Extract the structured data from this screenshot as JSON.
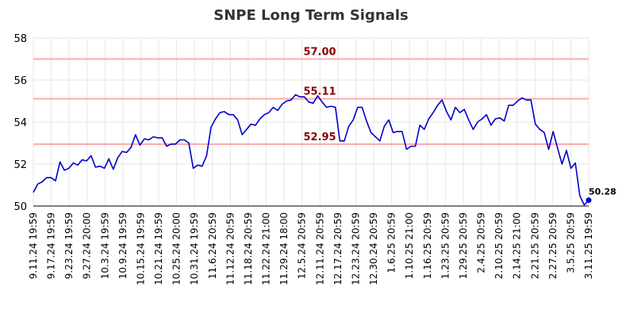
{
  "chart_data": {
    "type": "line",
    "title": "SNPE Long Term Signals",
    "ylim": [
      50,
      58
    ],
    "yticks": [
      50,
      52,
      54,
      56,
      58
    ],
    "grid": true,
    "line_color": "#0000cc",
    "level_color": "#ffaaaa",
    "level_label_color": "#8b0000",
    "levels": [
      {
        "value": 57.0,
        "label": "57.00"
      },
      {
        "value": 55.11,
        "label": "55.11"
      },
      {
        "value": 52.95,
        "label": "52.95"
      }
    ],
    "last_point": {
      "label": "50.28",
      "value": 50.28
    },
    "xtick_labels": [
      "9.11.24 19:59",
      "9.17.24 19:59",
      "9.23.24 19:59",
      "9.27.24 20:00",
      "10.3.24 19:59",
      "10.9.24 19:59",
      "10.15.24 19:59",
      "10.21.24 19:59",
      "10.25.24 20:00",
      "10.31.24 19:59",
      "11.6.24 20:59",
      "11.12.24 20:59",
      "11.18.24 20:59",
      "11.22.24 21:00",
      "11.29.24 18:00",
      "12.5.24 20:59",
      "12.11.24 20:59",
      "12.17.24 20:59",
      "12.23.24 20:59",
      "12.30.24 20:59",
      "1.6.25 20:59",
      "1.10.25 21:00",
      "1.16.25 20:59",
      "1.23.25 20:59",
      "1.29.25 20:59",
      "2.4.25 20:59",
      "2.10.25 20:59",
      "2.14.25 21:00",
      "2.21.25 20:59",
      "2.27.25 20:59",
      "3.5.25 20:59",
      "3.11.25 19:59"
    ],
    "values": [
      50.65,
      51.05,
      51.15,
      51.35,
      51.35,
      51.2,
      52.1,
      51.7,
      51.8,
      52.05,
      51.95,
      52.2,
      52.15,
      52.4,
      51.85,
      51.9,
      51.8,
      52.25,
      51.75,
      52.3,
      52.6,
      52.55,
      52.8,
      53.4,
      52.9,
      53.2,
      53.15,
      53.3,
      53.25,
      53.25,
      52.85,
      52.95,
      52.95,
      53.15,
      53.15,
      53.0,
      51.8,
      51.95,
      51.9,
      52.4,
      53.75,
      54.15,
      54.45,
      54.5,
      54.35,
      54.35,
      54.1,
      53.4,
      53.65,
      53.9,
      53.85,
      54.15,
      54.35,
      54.45,
      54.7,
      54.55,
      54.85,
      55.0,
      55.05,
      55.3,
      55.2,
      55.2,
      54.95,
      54.9,
      55.25,
      54.95,
      54.7,
      54.75,
      54.7,
      53.1,
      53.1,
      53.8,
      54.1,
      54.7,
      54.7,
      54.05,
      53.5,
      53.3,
      53.1,
      53.8,
      54.1,
      53.5,
      53.55,
      53.55,
      52.7,
      52.85,
      52.85,
      53.85,
      53.65,
      54.15,
      54.45,
      54.8,
      55.05,
      54.5,
      54.1,
      54.7,
      54.45,
      54.6,
      54.1,
      53.65,
      54.0,
      54.15,
      54.35,
      53.85,
      54.15,
      54.2,
      54.05,
      54.8,
      54.8,
      55.0,
      55.15,
      55.05,
      55.05,
      53.9,
      53.65,
      53.5,
      52.7,
      53.55,
      52.75,
      52.0,
      52.65,
      51.8,
      52.05,
      50.5,
      50.05,
      50.28
    ]
  }
}
